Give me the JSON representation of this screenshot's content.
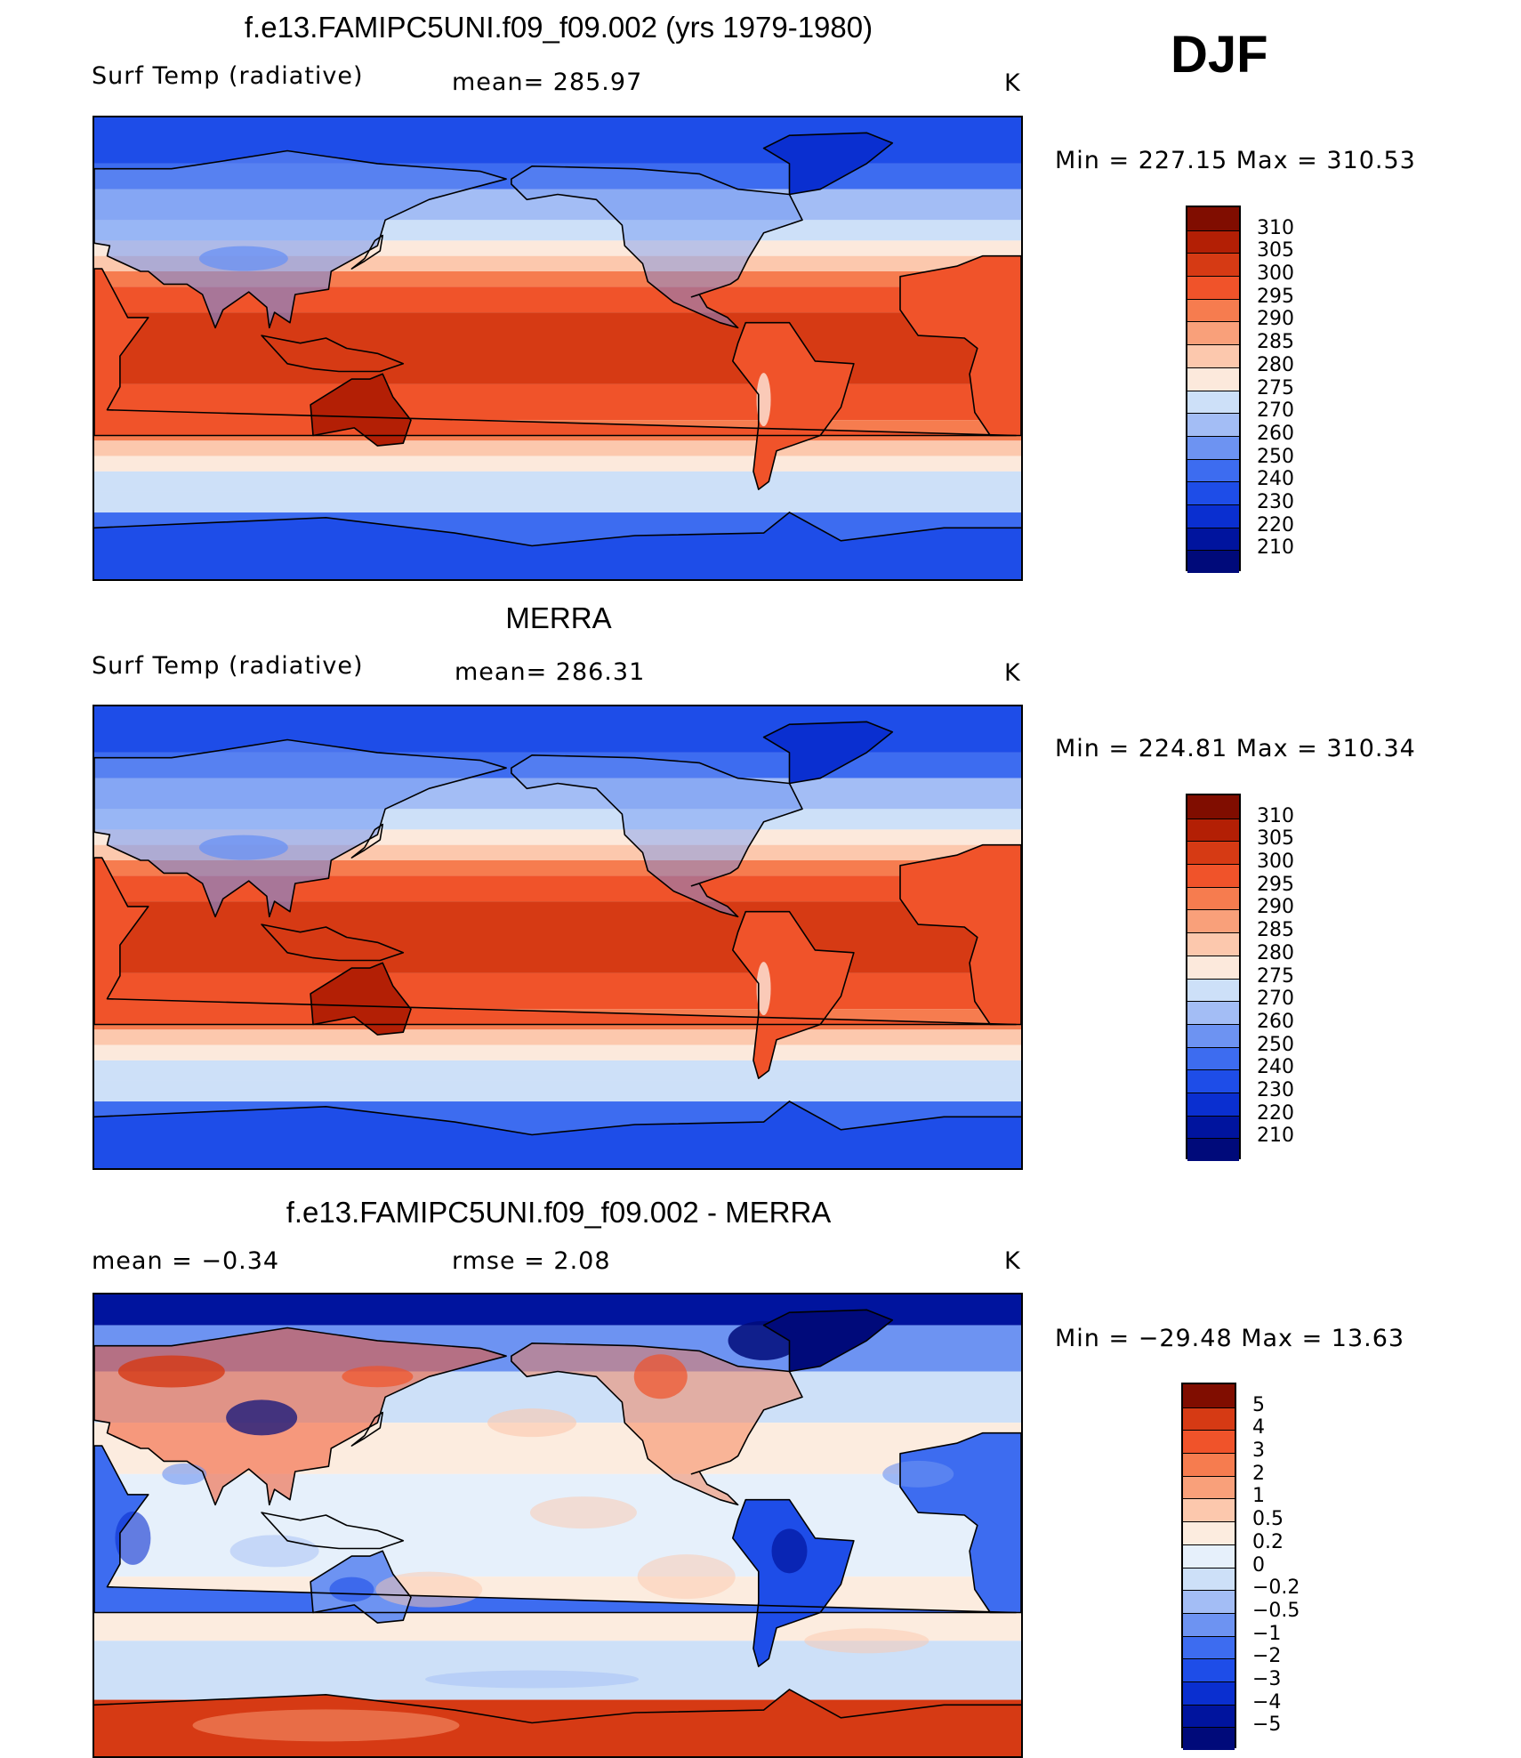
{
  "season": "DJF",
  "panels": [
    {
      "title": "f.e13.FAMIPC5UNI.f09_f09.002 (yrs 1979-1980)",
      "left_label": "Surf Temp (radiative)",
      "mid_label": "mean= 285.97",
      "units": "K",
      "range_text": "Min = 227.15 Max = 310.53",
      "kind": "abs",
      "colorbar_labels": [
        "310",
        "305",
        "300",
        "295",
        "290",
        "285",
        "280",
        "275",
        "270",
        "260",
        "250",
        "240",
        "230",
        "220",
        "210"
      ]
    },
    {
      "title": "MERRA",
      "left_label": "Surf Temp (radiative)",
      "mid_label": "mean= 286.31",
      "units": "K",
      "range_text": "Min = 224.81 Max = 310.34",
      "kind": "abs",
      "colorbar_labels": [
        "310",
        "305",
        "300",
        "295",
        "290",
        "285",
        "280",
        "275",
        "270",
        "260",
        "250",
        "240",
        "230",
        "220",
        "210"
      ]
    },
    {
      "title": "f.e13.FAMIPC5UNI.f09_f09.002 - MERRA",
      "left_label": "mean =   −0.34",
      "mid_label": "rmse =    2.08",
      "units": "K",
      "range_text": "Min = −29.48 Max =   13.63",
      "kind": "diff",
      "colorbar_labels": [
        "5",
        "4",
        "3",
        "2",
        "1",
        "0.5",
        "0.2",
        "0",
        "−0.2",
        "−0.5",
        "−1",
        "−2",
        "−3",
        "−4",
        "−5"
      ]
    }
  ],
  "colors": {
    "abs_scale": [
      "#000a7a",
      "#00149e",
      "#0a2fd0",
      "#1e4de8",
      "#3d6cf0",
      "#6d93f2",
      "#a3bdf5",
      "#cde0f8",
      "#fce9dc",
      "#fcc8ad",
      "#f9a07a",
      "#f67c4f",
      "#f0532a",
      "#d63a14",
      "#b31f05",
      "#800d00"
    ],
    "diff_scale": [
      "#000a7a",
      "#00149e",
      "#0a2fd0",
      "#1e4de8",
      "#3d6cf0",
      "#6d93f2",
      "#a3bdf5",
      "#cde0f8",
      "#e6f0fb",
      "#fcecdf",
      "#fcc8ad",
      "#f9a07a",
      "#f67c4f",
      "#f0532a",
      "#d63a14",
      "#800d00"
    ]
  }
}
